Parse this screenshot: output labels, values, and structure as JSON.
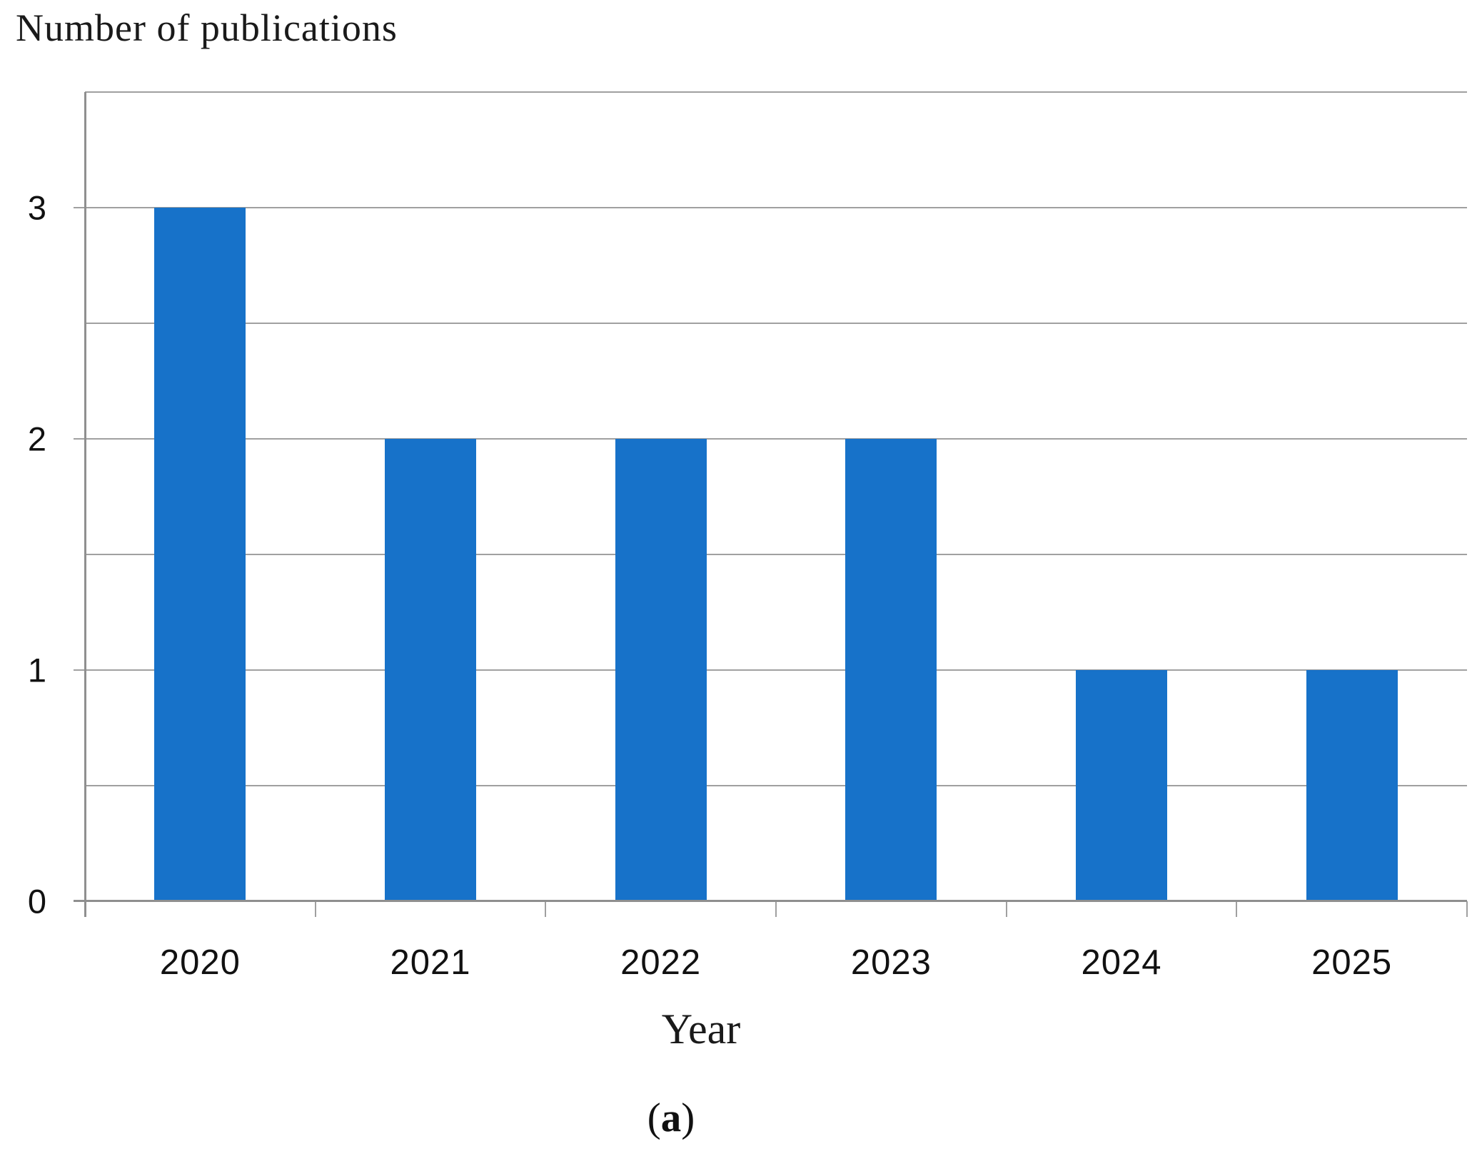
{
  "figure": {
    "caption": {
      "open": "(",
      "letter": "a",
      "close": ")"
    }
  },
  "chart_data": {
    "type": "bar",
    "title": "Number of publications",
    "xlabel": "Year",
    "ylabel": "Number of publications",
    "categories": [
      "2020",
      "2021",
      "2022",
      "2023",
      "2024",
      "2025"
    ],
    "values": [
      3,
      2,
      2,
      2,
      1,
      1
    ],
    "ylim": [
      0,
      3.5
    ],
    "ytick_values": [
      0,
      1,
      2,
      3
    ],
    "grid_step": 0.5,
    "grid": true,
    "legend": "none",
    "bar_color": "#1772C9",
    "grid_color": "#A0A0A0",
    "axis_color": "#8F8F8F",
    "text_color": "#1A1A1A"
  }
}
